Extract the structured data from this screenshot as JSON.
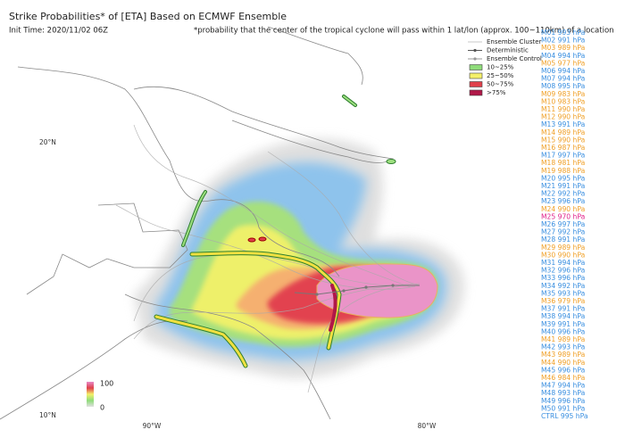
{
  "header": {
    "title": "Strike Probabilities* of [ETA] Based on ECMWF Ensemble",
    "init_time": "Init Time: 2020/11/02 06Z",
    "note": "*probability that the center of the tropical cyclone will pass within 1 lat/lon (approx. 100~110km) of a location"
  },
  "legend": {
    "lines": [
      {
        "label": "Ensemble Cluster",
        "color": "#c8c8c8",
        "marker": false
      },
      {
        "label": "Deterministic",
        "color": "#555555",
        "marker": true
      },
      {
        "label": "Ensemble Control",
        "color": "#999999",
        "marker": true
      }
    ],
    "boxes": [
      {
        "label": "10~25%",
        "color": "#8fdc7a"
      },
      {
        "label": "25~50%",
        "color": "#f4f06a"
      },
      {
        "label": "50~75%",
        "color": "#e0404a"
      },
      {
        "label": ">75%",
        "color": "#b01848"
      }
    ]
  },
  "axes": {
    "lat": [
      "20°N",
      "10°N"
    ],
    "lon": [
      "90°W",
      "80°W"
    ]
  },
  "colorbar": {
    "max": "100",
    "min": "0"
  },
  "members": [
    {
      "label": "M01 993 hPa",
      "color": "#3a8fe0"
    },
    {
      "label": "M02 991 hPa",
      "color": "#3a8fe0"
    },
    {
      "label": "M03 989 hPa",
      "color": "#f0a028"
    },
    {
      "label": "M04 994 hPa",
      "color": "#3a8fe0"
    },
    {
      "label": "M05 977 hPa",
      "color": "#f0a028"
    },
    {
      "label": "M06 994 hPa",
      "color": "#3a8fe0"
    },
    {
      "label": "M07 994 hPa",
      "color": "#3a8fe0"
    },
    {
      "label": "M08 995 hPa",
      "color": "#3a8fe0"
    },
    {
      "label": "M09 983 hPa",
      "color": "#f0a028"
    },
    {
      "label": "M10 983 hPa",
      "color": "#f0a028"
    },
    {
      "label": "M11 990 hPa",
      "color": "#f0a028"
    },
    {
      "label": "M12 990 hPa",
      "color": "#f0a028"
    },
    {
      "label": "M13 991 hPa",
      "color": "#3a8fe0"
    },
    {
      "label": "M14 989 hPa",
      "color": "#f0a028"
    },
    {
      "label": "M15 990 hPa",
      "color": "#f0a028"
    },
    {
      "label": "M16 987 hPa",
      "color": "#f0a028"
    },
    {
      "label": "M17 997 hPa",
      "color": "#3a8fe0"
    },
    {
      "label": "M18 981 hPa",
      "color": "#f0a028"
    },
    {
      "label": "M19 988 hPa",
      "color": "#f0a028"
    },
    {
      "label": "M20 995 hPa",
      "color": "#3a8fe0"
    },
    {
      "label": "M21 991 hPa",
      "color": "#3a8fe0"
    },
    {
      "label": "M22 992 hPa",
      "color": "#3a8fe0"
    },
    {
      "label": "M23 996 hPa",
      "color": "#3a8fe0"
    },
    {
      "label": "M24 990 hPa",
      "color": "#f0a028"
    },
    {
      "label": "M25 970 hPa",
      "color": "#e0208a"
    },
    {
      "label": "M26 997 hPa",
      "color": "#3a8fe0"
    },
    {
      "label": "M27 992 hPa",
      "color": "#3a8fe0"
    },
    {
      "label": "M28 991 hPa",
      "color": "#3a8fe0"
    },
    {
      "label": "M29 989 hPa",
      "color": "#f0a028"
    },
    {
      "label": "M30 990 hPa",
      "color": "#f0a028"
    },
    {
      "label": "M31 994 hPa",
      "color": "#3a8fe0"
    },
    {
      "label": "M32 996 hPa",
      "color": "#3a8fe0"
    },
    {
      "label": "M33 996 hPa",
      "color": "#3a8fe0"
    },
    {
      "label": "M34 992 hPa",
      "color": "#3a8fe0"
    },
    {
      "label": "M35 993 hPa",
      "color": "#3a8fe0"
    },
    {
      "label": "M36 979 hPa",
      "color": "#f0a028"
    },
    {
      "label": "M37 991 hPa",
      "color": "#3a8fe0"
    },
    {
      "label": "M38 994 hPa",
      "color": "#3a8fe0"
    },
    {
      "label": "M39 991 hPa",
      "color": "#3a8fe0"
    },
    {
      "label": "M40 996 hPa",
      "color": "#3a8fe0"
    },
    {
      "label": "M41 989 hPa",
      "color": "#f0a028"
    },
    {
      "label": "M42 993 hPa",
      "color": "#3a8fe0"
    },
    {
      "label": "M43 989 hPa",
      "color": "#f0a028"
    },
    {
      "label": "M44 990 hPa",
      "color": "#f0a028"
    },
    {
      "label": "M45 996 hPa",
      "color": "#3a8fe0"
    },
    {
      "label": "M46 984 hPa",
      "color": "#f0a028"
    },
    {
      "label": "M47 994 hPa",
      "color": "#3a8fe0"
    },
    {
      "label": "M48 993 hPa",
      "color": "#3a8fe0"
    },
    {
      "label": "M49 996 hPa",
      "color": "#3a8fe0"
    },
    {
      "label": "M50 991 hPa",
      "color": "#3a8fe0"
    },
    {
      "label": "CTRL 995 hPa",
      "color": "#3a8fe0"
    }
  ]
}
